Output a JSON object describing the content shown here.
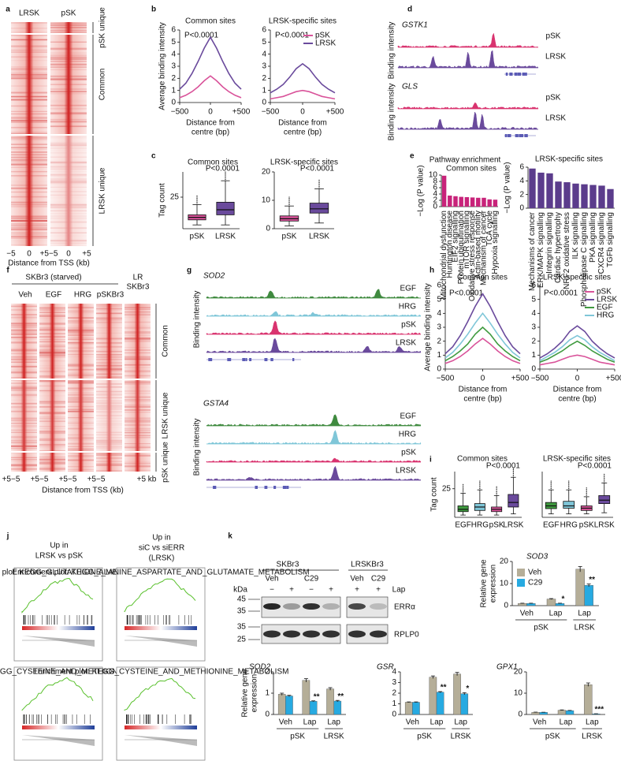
{
  "panels": {
    "a": {
      "label": "a",
      "columns": [
        "LRSK",
        "pSK"
      ],
      "clusters": [
        "pSK unique",
        "Common",
        "LRSK unique"
      ],
      "xticks": [
        "−5",
        "0",
        "+5−5",
        "0",
        "+5"
      ],
      "xlabel": "Distance from TSS (kb)"
    },
    "d": {
      "label": "d",
      "ylabel": "Binding intensity",
      "genes": [
        "GSTK1",
        "GLS"
      ],
      "tracks": [
        "pSK",
        "LRSK"
      ]
    },
    "f": {
      "label": "f",
      "group": "SKBr3 (starved)",
      "columns": [
        "Veh",
        "EGF",
        "HRG",
        "pSKBr3"
      ],
      "last_column": [
        "LR",
        "SKBr3"
      ],
      "clusters": [
        "Common",
        "LRSK unique",
        "pSK unique"
      ],
      "xticks": [
        "+5−5",
        "+5−5",
        "+5−5",
        "+5−5",
        "+5 kb"
      ],
      "xlabel": "Distance from TSS (kb)"
    },
    "g": {
      "label": "g",
      "ylabel": "Binding intensity",
      "genes": [
        "SOD2",
        "GSTA4"
      ],
      "tracks": [
        "EGF",
        "HRG",
        "pSK",
        "LRSK"
      ]
    },
    "j": {
      "label": "j",
      "headers": [
        [
          "Up in",
          "LRSK vs pSK"
        ],
        [
          "Up in",
          "siC vs siERR",
          "(LRSK)"
        ]
      ],
      "plots": [
        "Enrichment plot: KEGG_GLUTATHIONE_METABOLISM",
        "Enrichment plot: KEGG_ALANINE_ASPARTATE_AND_GLUTAMATE_METABOLISM",
        "Enrichment plot: KEGG_CYSTEINE_AND_METHIONINE_METABOLISM",
        "Enrichment plot: KEGG_CYSTEINE_AND_METHIONINE_METABOLISM"
      ]
    },
    "k": {
      "label": "k",
      "lines": [
        "SKBr3",
        "LRSKBr3"
      ],
      "treatments": [
        "Veh",
        "C29",
        "Veh",
        "C29"
      ],
      "kda": "kDa",
      "lap_signs": [
        "−",
        "+",
        "−",
        "+",
        "+",
        "+"
      ],
      "lap": "Lap",
      "proteins": [
        "ERRα",
        "RPLP0"
      ],
      "markers": [
        "45",
        "35",
        "35",
        "25"
      ]
    }
  },
  "chart_data": [
    {
      "type": "line",
      "panel": "b",
      "title": "Common sites",
      "ylabel": "Average binding intensity",
      "xlabel": [
        "Distance from",
        "centre (bp)"
      ],
      "annotation": "P<0.0001",
      "x": [
        -500,
        -400,
        -300,
        -200,
        -100,
        0,
        100,
        200,
        300,
        400,
        500
      ],
      "xlim": [
        -500,
        500
      ],
      "xticks": [
        {
          "value": -500,
          "label": "−500"
        },
        0,
        {
          "value": 500,
          "label": "+500"
        }
      ],
      "ylim": [
        0,
        6
      ],
      "yticks": [
        0,
        1,
        2,
        3,
        4,
        5,
        6
      ],
      "series": [
        {
          "name": "pSK",
          "color": "#d9539a",
          "values": [
            0.4,
            0.6,
            0.9,
            1.3,
            1.8,
            2.2,
            1.8,
            1.3,
            0.9,
            0.6,
            0.4
          ]
        },
        {
          "name": "LRSK",
          "color": "#6a4a9c",
          "values": [
            1.1,
            1.6,
            2.4,
            3.4,
            4.5,
            5.4,
            4.5,
            3.4,
            2.4,
            1.6,
            1.1
          ]
        }
      ]
    },
    {
      "type": "line",
      "title": "LRSK-specific sites",
      "xlabel": [
        "Distance from",
        "centre (bp)"
      ],
      "annotation": "P<0.0001",
      "legend": "upper right",
      "x": [
        -500,
        -400,
        -300,
        -200,
        -100,
        0,
        100,
        200,
        300,
        400,
        500
      ],
      "xlim": [
        -500,
        500
      ],
      "xticks": [
        {
          "value": -500,
          "label": "−500"
        },
        0,
        {
          "value": 500,
          "label": "+500"
        }
      ],
      "ylim": [
        0,
        6
      ],
      "yticks": [
        0,
        1,
        2,
        3,
        4,
        5,
        6
      ],
      "series": [
        {
          "name": "pSK",
          "color": "#d9539a",
          "values": [
            0.3,
            0.4,
            0.5,
            0.7,
            0.9,
            1.0,
            0.9,
            0.7,
            0.5,
            0.4,
            0.3
          ]
        },
        {
          "name": "LRSK",
          "color": "#6a4a9c",
          "values": [
            0.8,
            1.1,
            1.5,
            2.1,
            2.8,
            3.2,
            2.8,
            2.1,
            1.5,
            1.1,
            0.8
          ]
        }
      ]
    },
    {
      "type": "box",
      "panel": "c",
      "title": "Common sites",
      "ylabel": "Tag count",
      "annotation": "P<0.0001",
      "categories": [
        "pSK",
        "LRSK"
      ],
      "colors": [
        "#d9539a",
        "#6a4a9c"
      ],
      "boxes": [
        {
          "min": 3,
          "q1": 7,
          "median": 9,
          "q3": 11,
          "max": 19
        },
        {
          "min": 3,
          "q1": 11,
          "median": 15,
          "q3": 21,
          "max": 38
        }
      ],
      "ylim": [
        0,
        45
      ],
      "yticks": [
        25
      ]
    },
    {
      "type": "box",
      "title": "LRSK-specific sites",
      "annotation": "P<0.0001",
      "categories": [
        "pSK",
        "LRSK"
      ],
      "colors": [
        "#d9539a",
        "#6a4a9c"
      ],
      "boxes": [
        {
          "min": 1,
          "q1": 2.7,
          "median": 3.5,
          "q3": 4.5,
          "max": 8
        },
        {
          "min": 2,
          "q1": 5.5,
          "median": 7,
          "q3": 9,
          "max": 14
        }
      ],
      "ylim": [
        0,
        20
      ],
      "yticks": [
        0,
        10,
        20
      ]
    },
    {
      "type": "bar",
      "panel": "e",
      "heading": "Pathway enrichment",
      "title": "Common sites",
      "ylabel": "−Log (P value)",
      "color": "#c8237a",
      "categories": [
        "Mitochondrial dysfunction",
        "Huntington disease",
        "EIF2 signalling",
        "Protein ubiquitination",
        "mTOR signalling",
        "Oxidative stress response",
        "Actin-based motility",
        "Mechanism of cancer",
        "TCA cycle",
        "Hypoxia signalling"
      ],
      "values": [
        9.8,
        3.5,
        3.3,
        3.1,
        3.0,
        2.9,
        2.8,
        2.8,
        2.3,
        2.2
      ],
      "ylim": [
        0,
        10
      ],
      "yticks": [
        0,
        2,
        4,
        6,
        8,
        10
      ]
    },
    {
      "type": "bar",
      "title": "LRSK-specific sites",
      "ylabel": "−Log (P value)",
      "color": "#5b3c8c",
      "categories": [
        "Mechanisms of cancer",
        "ERK/MAPK signalling",
        "Integrin signalling",
        "Cardiac hypertrophy",
        "NRF2 oxidative stress",
        "ILK signalling",
        "Phospholipase C signalling",
        "PKA signalling",
        "CXCR4 signalling",
        "TGFb signalling"
      ],
      "values": [
        5.8,
        5.2,
        5.1,
        3.9,
        3.8,
        3.6,
        3.5,
        3.4,
        3.3,
        2.8
      ],
      "ylim": [
        0,
        6
      ],
      "yticks": [
        0,
        2,
        4,
        6
      ]
    },
    {
      "type": "line",
      "panel": "h",
      "title": "Common sites",
      "ylabel": "Average binding intensity",
      "xlabel": [
        "Distance from",
        "centre (bp)"
      ],
      "annotation": "P<0.0001",
      "x": [
        -500,
        -400,
        -300,
        -200,
        -100,
        0,
        100,
        200,
        300,
        400,
        500
      ],
      "xlim": [
        -500,
        500
      ],
      "xticks": [
        {
          "value": -500,
          "label": "−500"
        },
        0,
        {
          "value": 500,
          "label": "+500"
        }
      ],
      "ylim": [
        0,
        6
      ],
      "yticks": [
        0,
        1,
        2,
        3,
        4,
        5,
        6
      ],
      "series": [
        {
          "name": "pSK",
          "color": "#d9539a",
          "values": [
            0.4,
            0.6,
            0.9,
            1.3,
            1.8,
            2.2,
            1.8,
            1.3,
            0.9,
            0.6,
            0.4
          ]
        },
        {
          "name": "LRSK",
          "color": "#6a4a9c",
          "values": [
            1.1,
            1.6,
            2.4,
            3.4,
            4.5,
            5.4,
            4.5,
            3.4,
            2.4,
            1.6,
            1.1
          ]
        },
        {
          "name": "EGF",
          "color": "#3f9a3f",
          "values": [
            0.6,
            0.9,
            1.3,
            1.8,
            2.5,
            3.0,
            2.5,
            1.8,
            1.3,
            0.9,
            0.6
          ]
        },
        {
          "name": "HRG",
          "color": "#7fc6d8",
          "values": [
            0.8,
            1.2,
            1.8,
            2.5,
            3.3,
            4.0,
            3.3,
            2.5,
            1.8,
            1.2,
            0.8
          ]
        }
      ]
    },
    {
      "type": "line",
      "title": "LRSK-specific sites",
      "xlabel": [
        "Distance from",
        "centre (bp)"
      ],
      "annotation": "P<0.0001",
      "legend": "upper right",
      "x": [
        -500,
        -400,
        -300,
        -200,
        -100,
        0,
        100,
        200,
        300,
        400,
        500
      ],
      "xlim": [
        -500,
        500
      ],
      "xticks": [
        {
          "value": -500,
          "label": "−500"
        },
        0,
        {
          "value": 500,
          "label": "+500"
        }
      ],
      "ylim": [
        0,
        6
      ],
      "yticks": [
        0,
        1,
        2,
        3,
        4,
        5,
        6
      ],
      "series": [
        {
          "name": "pSK",
          "color": "#d9539a",
          "values": [
            0.3,
            0.4,
            0.5,
            0.7,
            0.9,
            1.0,
            0.9,
            0.7,
            0.5,
            0.4,
            0.3
          ]
        },
        {
          "name": "LRSK",
          "color": "#6a4a9c",
          "values": [
            0.8,
            1.1,
            1.5,
            2.0,
            2.7,
            3.1,
            2.7,
            2.0,
            1.5,
            1.1,
            0.8
          ]
        },
        {
          "name": "EGF",
          "color": "#3f9a3f",
          "values": [
            0.5,
            0.7,
            1.0,
            1.3,
            1.7,
            2.0,
            1.7,
            1.3,
            1.0,
            0.7,
            0.5
          ]
        },
        {
          "name": "HRG",
          "color": "#7fc6d8",
          "values": [
            0.6,
            0.9,
            1.2,
            1.6,
            2.1,
            2.4,
            2.1,
            1.6,
            1.2,
            0.9,
            0.6
          ]
        }
      ]
    },
    {
      "type": "box",
      "panel": "i",
      "title": "Common sites",
      "ylabel": "Tag count",
      "annotation": "P<0.0001",
      "categories": [
        "EGF",
        "HRG",
        "pSK",
        "LRSK"
      ],
      "colors": [
        "#3f9a3f",
        "#7fc6d8",
        "#d9539a",
        "#6a4a9c"
      ],
      "boxes": [
        {
          "min": 2,
          "q1": 5,
          "median": 7,
          "q3": 10,
          "max": 21
        },
        {
          "min": 2,
          "q1": 6,
          "median": 9,
          "q3": 12,
          "max": 24
        },
        {
          "min": 2,
          "q1": 5,
          "median": 7,
          "q3": 9,
          "max": 19
        },
        {
          "min": 3,
          "q1": 9,
          "median": 13,
          "q3": 20,
          "max": 35
        }
      ],
      "ylim": [
        0,
        40
      ],
      "yticks": [
        25
      ]
    },
    {
      "type": "box",
      "title": "LRSK-specific sites",
      "annotation": "P<0.0001",
      "categories": [
        "EGF",
        "HRG",
        "pSK",
        "LRSK"
      ],
      "colors": [
        "#3f9a3f",
        "#7fc6d8",
        "#d9539a",
        "#6a4a9c"
      ],
      "boxes": [
        {
          "min": 1.5,
          "q1": 3.8,
          "median": 5,
          "q3": 6.5,
          "max": 12
        },
        {
          "min": 1.5,
          "q1": 4,
          "median": 5,
          "q3": 7,
          "max": 12
        },
        {
          "min": 1.5,
          "q1": 3,
          "median": 4,
          "q3": 5,
          "max": 9
        },
        {
          "min": 2,
          "q1": 6,
          "median": 7.5,
          "q3": 9.5,
          "max": 15
        }
      ],
      "ylim": [
        0,
        20
      ],
      "yticks": []
    },
    {
      "type": "grouped",
      "title": "SOD3",
      "ylabel": [
        "Relative gene",
        "expression"
      ],
      "legend": "upper left",
      "groups": [
        {
          "name": "pSK",
          "categories": [
            "Veh",
            "Lap"
          ]
        },
        {
          "name": "LRSK",
          "categories": [
            "Lap"
          ]
        }
      ],
      "ylim": [
        0,
        20
      ],
      "yticks": [
        0,
        10,
        20
      ],
      "series": [
        {
          "name": "Veh",
          "color": "#b5ae98",
          "values": [
            1,
            3,
            16.5
          ],
          "errors": [
            0.1,
            0.2,
            1.2
          ],
          "sig": [
            null,
            null,
            null
          ]
        },
        {
          "name": "C29",
          "color": "#27aae1",
          "values": [
            1,
            1,
            9.2
          ],
          "errors": [
            0.1,
            0.1,
            0.6
          ],
          "sig": [
            null,
            "*",
            "**"
          ]
        }
      ]
    },
    {
      "type": "grouped",
      "title": "SOD2",
      "ylabel": [
        "Relative gene",
        "expression"
      ],
      "groups": [
        {
          "name": "pSK",
          "categories": [
            "Veh",
            "Lap"
          ]
        },
        {
          "name": "LRSK",
          "categories": [
            "Lap"
          ]
        }
      ],
      "ylim": [
        0,
        2
      ],
      "yticks": [
        0,
        1,
        2
      ],
      "series": [
        {
          "name": "Veh",
          "color": "#b5ae98",
          "values": [
            0.95,
            1.6,
            1.2
          ],
          "errors": [
            0.05,
            0.08,
            0.06
          ],
          "sig": [
            null,
            null,
            null
          ]
        },
        {
          "name": "C29",
          "color": "#27aae1",
          "values": [
            0.87,
            0.62,
            0.63
          ],
          "errors": [
            0.03,
            0.02,
            0.03
          ],
          "sig": [
            null,
            "**",
            "**"
          ]
        }
      ]
    },
    {
      "type": "grouped",
      "title": "GSR",
      "groups": [
        {
          "name": "pSK",
          "categories": [
            "Veh",
            "Lap"
          ]
        },
        {
          "name": "LRSK",
          "categories": [
            "Lap"
          ]
        }
      ],
      "ylim": [
        0,
        4
      ],
      "yticks": [
        0,
        1,
        2,
        3,
        4
      ],
      "series": [
        {
          "name": "Veh",
          "color": "#b5ae98",
          "values": [
            1.15,
            3.5,
            3.8
          ],
          "errors": [
            0.03,
            0.12,
            0.15
          ],
          "sig": [
            null,
            null,
            null
          ]
        },
        {
          "name": "C29",
          "color": "#27aae1",
          "values": [
            1.15,
            2.1,
            1.95
          ],
          "errors": [
            0.03,
            0.05,
            0.1
          ],
          "sig": [
            null,
            "**",
            "*"
          ]
        }
      ]
    },
    {
      "type": "grouped",
      "title": "GPX1",
      "groups": [
        {
          "name": "pSK",
          "categories": [
            "Veh",
            "Lap"
          ]
        },
        {
          "name": "LRSK",
          "categories": [
            "Lap"
          ]
        }
      ],
      "ylim": [
        0,
        20
      ],
      "yticks": [
        0,
        10,
        20
      ],
      "series": [
        {
          "name": "Veh",
          "color": "#b5ae98",
          "values": [
            1,
            2,
            14
          ],
          "errors": [
            0.1,
            0.15,
            0.8
          ],
          "sig": [
            null,
            null,
            null
          ]
        },
        {
          "name": "C29",
          "color": "#27aae1",
          "values": [
            1,
            1.8,
            0.3
          ],
          "errors": [
            0.05,
            0.1,
            0.05
          ],
          "sig": [
            null,
            null,
            "***"
          ]
        }
      ]
    }
  ]
}
